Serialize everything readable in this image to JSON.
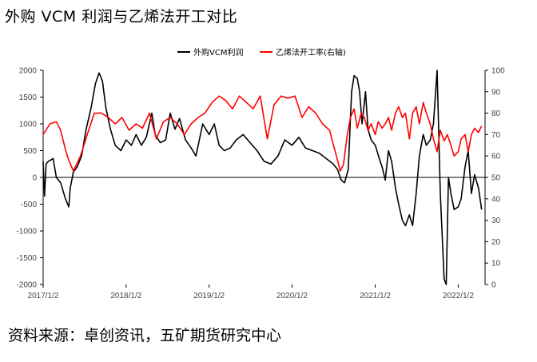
{
  "title": "外购 VCM 利润与乙烯法开工对比",
  "source": "资料来源：卓创资讯，五矿期货研究中心",
  "chart_data": {
    "type": "line",
    "title": "外购 VCM 利润与乙烯法开工对比",
    "x_ticks": [
      "2017/1/2",
      "2018/1/2",
      "2019/1/2",
      "2020/1/2",
      "2021/1/2",
      "2022/1/2"
    ],
    "x_range": [
      "2017-01-02",
      "2022-04-30"
    ],
    "y_left": {
      "range": [
        -2000,
        2000
      ],
      "ticks": [
        "2000",
        "1500",
        "1000",
        "500",
        "0",
        "-500",
        "-1000",
        "-1500",
        "-2000"
      ]
    },
    "y_right": {
      "range": [
        0,
        100
      ],
      "ticks": [
        "100",
        "90",
        "80",
        "70",
        "60",
        "50",
        "40",
        "30",
        "20",
        "10",
        "0"
      ]
    },
    "grid": false,
    "legend_position": "top-center",
    "series": [
      {
        "name": "外购VCM利润",
        "axis": "left",
        "color": "#000000",
        "points": [
          [
            "2017-01-02",
            300
          ],
          [
            "2017-01-08",
            -350
          ],
          [
            "2017-01-15",
            250
          ],
          [
            "2017-01-25",
            300
          ],
          [
            "2017-02-15",
            350
          ],
          [
            "2017-03-01",
            0
          ],
          [
            "2017-03-20",
            -100
          ],
          [
            "2017-04-10",
            -400
          ],
          [
            "2017-04-25",
            -550
          ],
          [
            "2017-05-01",
            -200
          ],
          [
            "2017-05-15",
            100
          ],
          [
            "2017-06-01",
            200
          ],
          [
            "2017-06-20",
            400
          ],
          [
            "2017-07-10",
            900
          ],
          [
            "2017-08-01",
            1300
          ],
          [
            "2017-08-20",
            1750
          ],
          [
            "2017-09-05",
            1950
          ],
          [
            "2017-09-20",
            1800
          ],
          [
            "2017-10-05",
            1300
          ],
          [
            "2017-10-25",
            900
          ],
          [
            "2017-11-15",
            600
          ],
          [
            "2017-12-10",
            500
          ],
          [
            "2018-01-02",
            700
          ],
          [
            "2018-01-25",
            600
          ],
          [
            "2018-02-15",
            800
          ],
          [
            "2018-03-10",
            600
          ],
          [
            "2018-04-01",
            750
          ],
          [
            "2018-04-25",
            1200
          ],
          [
            "2018-05-10",
            800
          ],
          [
            "2018-06-01",
            650
          ],
          [
            "2018-06-25",
            700
          ],
          [
            "2018-07-15",
            1200
          ],
          [
            "2018-08-05",
            900
          ],
          [
            "2018-08-25",
            1100
          ],
          [
            "2018-09-20",
            700
          ],
          [
            "2018-10-15",
            550
          ],
          [
            "2018-11-05",
            400
          ],
          [
            "2018-12-05",
            1000
          ],
          [
            "2019-01-02",
            800
          ],
          [
            "2019-01-25",
            1000
          ],
          [
            "2019-02-15",
            600
          ],
          [
            "2019-03-10",
            500
          ],
          [
            "2019-04-05",
            550
          ],
          [
            "2019-05-01",
            700
          ],
          [
            "2019-06-01",
            800
          ],
          [
            "2019-07-01",
            650
          ],
          [
            "2019-08-01",
            500
          ],
          [
            "2019-09-01",
            300
          ],
          [
            "2019-10-01",
            250
          ],
          [
            "2019-11-01",
            400
          ],
          [
            "2019-12-01",
            700
          ],
          [
            "2020-01-02",
            600
          ],
          [
            "2020-02-01",
            750
          ],
          [
            "2020-03-01",
            550
          ],
          [
            "2020-04-01",
            500
          ],
          [
            "2020-05-01",
            450
          ],
          [
            "2020-06-01",
            350
          ],
          [
            "2020-07-01",
            250
          ],
          [
            "2020-07-20",
            150
          ],
          [
            "2020-08-05",
            -50
          ],
          [
            "2020-08-20",
            -100
          ],
          [
            "2020-09-05",
            150
          ],
          [
            "2020-09-20",
            1600
          ],
          [
            "2020-10-01",
            1900
          ],
          [
            "2020-10-15",
            1850
          ],
          [
            "2020-10-25",
            1600
          ],
          [
            "2020-11-05",
            1000
          ],
          [
            "2020-11-20",
            1600
          ],
          [
            "2020-12-01",
            900
          ],
          [
            "2020-12-15",
            700
          ],
          [
            "2021-01-02",
            600
          ],
          [
            "2021-01-20",
            350
          ],
          [
            "2021-02-01",
            200
          ],
          [
            "2021-02-15",
            -50
          ],
          [
            "2021-03-01",
            500
          ],
          [
            "2021-03-15",
            300
          ],
          [
            "2021-04-01",
            -200
          ],
          [
            "2021-04-15",
            -500
          ],
          [
            "2021-05-01",
            -800
          ],
          [
            "2021-05-15",
            -900
          ],
          [
            "2021-06-01",
            -700
          ],
          [
            "2021-06-15",
            -900
          ],
          [
            "2021-07-01",
            -300
          ],
          [
            "2021-07-15",
            400
          ],
          [
            "2021-08-01",
            800
          ],
          [
            "2021-08-15",
            600
          ],
          [
            "2021-09-01",
            700
          ],
          [
            "2021-09-15",
            1000
          ],
          [
            "2021-10-01",
            2000
          ],
          [
            "2021-10-15",
            -300
          ],
          [
            "2021-11-01",
            -1900
          ],
          [
            "2021-11-10",
            -2000
          ],
          [
            "2021-11-20",
            0
          ],
          [
            "2021-12-01",
            -300
          ],
          [
            "2021-12-15",
            -600
          ],
          [
            "2022-01-02",
            -550
          ],
          [
            "2022-01-15",
            -400
          ],
          [
            "2022-02-01",
            200
          ],
          [
            "2022-02-15",
            500
          ],
          [
            "2022-03-01",
            -300
          ],
          [
            "2022-03-15",
            50
          ],
          [
            "2022-04-01",
            -200
          ],
          [
            "2022-04-15",
            -600
          ]
        ]
      },
      {
        "name": "乙烯法开工率(右轴)",
        "axis": "right",
        "color": "#ff0000",
        "points": [
          [
            "2017-01-02",
            70
          ],
          [
            "2017-02-01",
            75
          ],
          [
            "2017-03-01",
            76
          ],
          [
            "2017-03-20",
            72
          ],
          [
            "2017-04-10",
            63
          ],
          [
            "2017-04-25",
            58
          ],
          [
            "2017-05-15",
            53
          ],
          [
            "2017-06-15",
            60
          ],
          [
            "2017-07-15",
            70
          ],
          [
            "2017-08-15",
            80
          ],
          [
            "2017-09-15",
            80
          ],
          [
            "2017-10-15",
            78
          ],
          [
            "2017-11-15",
            75
          ],
          [
            "2017-12-15",
            78
          ],
          [
            "2018-01-15",
            72
          ],
          [
            "2018-02-15",
            75
          ],
          [
            "2018-03-15",
            73
          ],
          [
            "2018-04-15",
            80
          ],
          [
            "2018-05-15",
            68
          ],
          [
            "2018-06-15",
            76
          ],
          [
            "2018-07-15",
            78
          ],
          [
            "2018-08-15",
            75
          ],
          [
            "2018-09-15",
            70
          ],
          [
            "2018-10-15",
            75
          ],
          [
            "2018-11-15",
            78
          ],
          [
            "2018-12-15",
            80
          ],
          [
            "2019-01-15",
            85
          ],
          [
            "2019-02-15",
            88
          ],
          [
            "2019-03-15",
            86
          ],
          [
            "2019-04-15",
            82
          ],
          [
            "2019-05-15",
            88
          ],
          [
            "2019-06-15",
            85
          ],
          [
            "2019-07-15",
            82
          ],
          [
            "2019-08-15",
            88
          ],
          [
            "2019-09-15",
            68
          ],
          [
            "2019-10-15",
            84
          ],
          [
            "2019-11-15",
            88
          ],
          [
            "2019-12-15",
            87
          ],
          [
            "2020-01-15",
            88
          ],
          [
            "2020-02-15",
            78
          ],
          [
            "2020-03-15",
            83
          ],
          [
            "2020-04-15",
            80
          ],
          [
            "2020-05-15",
            75
          ],
          [
            "2020-06-15",
            72
          ],
          [
            "2020-07-15",
            60
          ],
          [
            "2020-08-01",
            53
          ],
          [
            "2020-08-15",
            56
          ],
          [
            "2020-09-01",
            70
          ],
          [
            "2020-09-15",
            78
          ],
          [
            "2020-10-01",
            82
          ],
          [
            "2020-10-15",
            73
          ],
          [
            "2020-11-01",
            80
          ],
          [
            "2020-11-15",
            78
          ],
          [
            "2020-12-01",
            72
          ],
          [
            "2020-12-15",
            75
          ],
          [
            "2021-01-02",
            70
          ],
          [
            "2021-01-15",
            76
          ],
          [
            "2021-02-01",
            73
          ],
          [
            "2021-02-15",
            75
          ],
          [
            "2021-03-01",
            78
          ],
          [
            "2021-03-15",
            72
          ],
          [
            "2021-04-01",
            80
          ],
          [
            "2021-04-15",
            83
          ],
          [
            "2021-05-01",
            78
          ],
          [
            "2021-05-15",
            80
          ],
          [
            "2021-06-01",
            68
          ],
          [
            "2021-06-15",
            80
          ],
          [
            "2021-07-01",
            83
          ],
          [
            "2021-07-15",
            75
          ],
          [
            "2021-08-01",
            85
          ],
          [
            "2021-08-15",
            80
          ],
          [
            "2021-09-01",
            75
          ],
          [
            "2021-09-15",
            68
          ],
          [
            "2021-10-01",
            62
          ],
          [
            "2021-10-15",
            72
          ],
          [
            "2021-11-01",
            67
          ],
          [
            "2021-11-15",
            70
          ],
          [
            "2021-12-01",
            65
          ],
          [
            "2021-12-15",
            60
          ],
          [
            "2022-01-02",
            62
          ],
          [
            "2022-01-15",
            68
          ],
          [
            "2022-02-01",
            70
          ],
          [
            "2022-02-15",
            62
          ],
          [
            "2022-03-01",
            70
          ],
          [
            "2022-03-15",
            73
          ],
          [
            "2022-04-01",
            71
          ],
          [
            "2022-04-15",
            74
          ]
        ]
      }
    ]
  }
}
